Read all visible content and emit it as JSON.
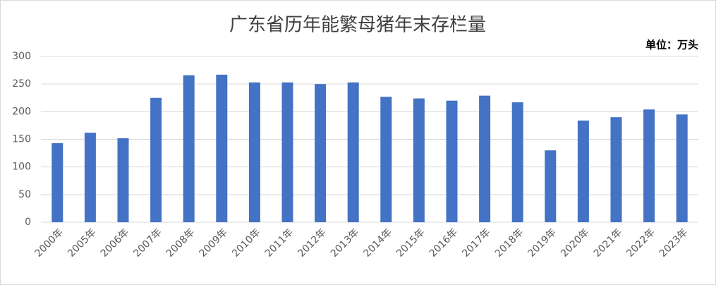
{
  "chart_data": {
    "type": "bar",
    "title": "广东省历年能繁母猪年末存栏量",
    "unit_label": "单位：万头",
    "categories": [
      "2000年",
      "2005年",
      "2006年",
      "2007年",
      "2008年",
      "2009年",
      "2010年",
      "2011年",
      "2012年",
      "2013年",
      "2014年",
      "2015年",
      "2016年",
      "2017年",
      "2018年",
      "2019年",
      "2020年",
      "2021年",
      "2022年",
      "2023年"
    ],
    "values": [
      143,
      162,
      152,
      225,
      266,
      267,
      253,
      253,
      250,
      253,
      227,
      224,
      220,
      229,
      217,
      130,
      184,
      190,
      204,
      195
    ],
    "color": "#4472c4",
    "ylim": [
      0,
      300
    ],
    "yticks": [
      0,
      50,
      100,
      150,
      200,
      250,
      300
    ],
    "grid": true
  }
}
